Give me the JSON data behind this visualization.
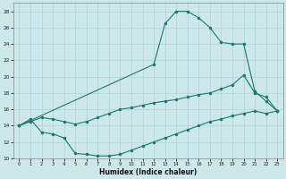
{
  "xlabel": "Humidex (Indice chaleur)",
  "xlim": [
    -0.5,
    23.5
  ],
  "ylim": [
    10,
    29
  ],
  "yticks": [
    10,
    12,
    14,
    16,
    18,
    20,
    22,
    24,
    26,
    28
  ],
  "xticks": [
    0,
    1,
    2,
    3,
    4,
    5,
    6,
    7,
    8,
    9,
    10,
    11,
    12,
    13,
    14,
    15,
    16,
    17,
    18,
    19,
    20,
    21,
    22,
    23
  ],
  "bg_color": "#cce8e8",
  "line_color": "#1a7a6e",
  "grid_color": "#b0d4d4",
  "curve_upper_x": [
    0,
    12,
    13,
    14,
    15,
    16,
    17,
    18,
    19,
    20,
    21,
    22,
    23
  ],
  "curve_upper_y": [
    14.0,
    21.5,
    26.5,
    28.0,
    28.0,
    27.2,
    26.0,
    24.2,
    24.0,
    24.0,
    18.2,
    17.0,
    15.8
  ],
  "curve_middle_x": [
    0,
    1,
    2,
    3,
    4,
    5,
    6,
    7,
    8,
    9,
    10,
    11,
    12,
    13,
    14,
    15,
    16,
    17,
    18,
    19,
    20,
    21,
    22,
    23
  ],
  "curve_middle_y": [
    14.0,
    14.5,
    15.0,
    14.8,
    14.5,
    14.2,
    14.5,
    15.0,
    15.5,
    16.0,
    16.2,
    16.5,
    16.8,
    17.0,
    17.2,
    17.5,
    17.8,
    18.0,
    18.5,
    19.0,
    20.2,
    18.0,
    17.5,
    15.8
  ],
  "curve_lower_x": [
    0,
    1,
    2,
    3,
    4,
    5,
    6,
    7,
    8,
    9,
    10,
    11,
    12,
    13,
    14,
    15,
    16,
    17,
    18,
    19,
    20,
    21,
    22,
    23
  ],
  "curve_lower_y": [
    14.0,
    14.8,
    13.2,
    13.0,
    12.5,
    10.6,
    10.5,
    10.3,
    10.3,
    10.5,
    11.0,
    11.5,
    12.0,
    12.5,
    13.0,
    13.5,
    14.0,
    14.5,
    14.8,
    15.2,
    15.5,
    15.8,
    15.5,
    15.8
  ]
}
